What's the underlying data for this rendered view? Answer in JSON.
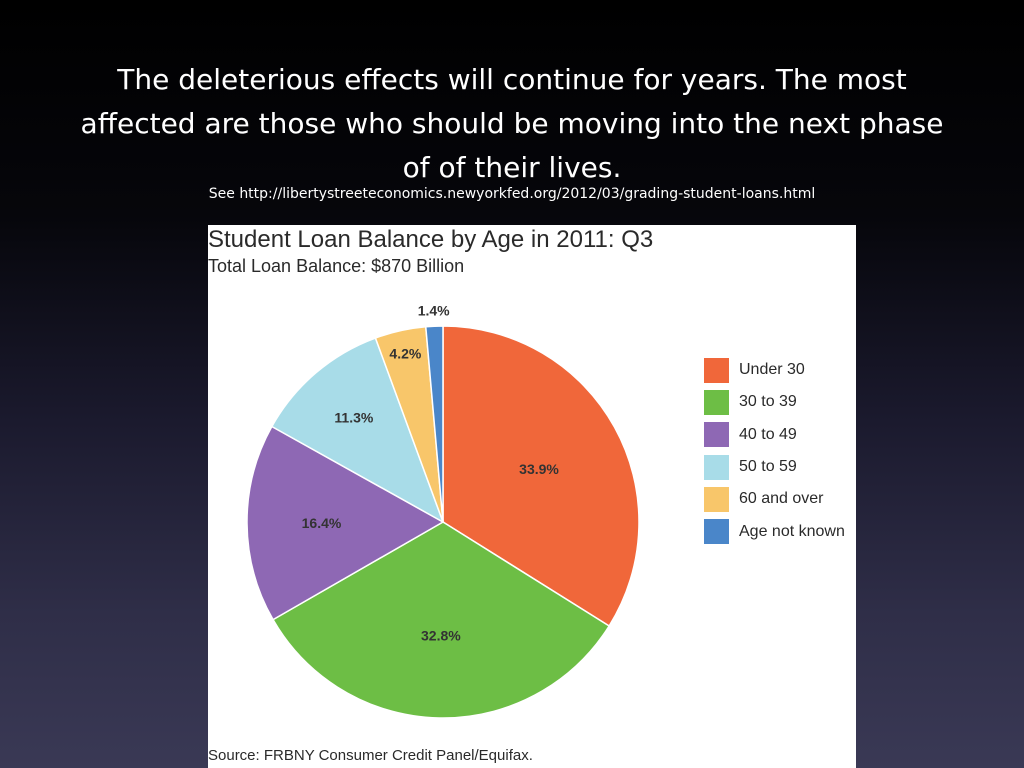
{
  "slide": {
    "title_lines": [
      "The deleterious effects will continue for years. The most",
      "affected are those who should be moving into the next phase",
      "of of their lives."
    ],
    "link": "See http://libertystreeteconomics.newyorkfed.org/2012/03/grading-student-loans.html"
  },
  "chart_data": {
    "type": "pie",
    "title": "Student Loan Balance by Age in 2011: Q3",
    "subtitle": "Total Loan Balance: $870 Billion",
    "source": "Source: FRBNY Consumer Credit Panel/Equifax.",
    "categories": [
      "Under 30",
      "30 to 39",
      "40 to 49",
      "50 to 59",
      "60 and over",
      "Age not known"
    ],
    "values": [
      33.9,
      32.8,
      16.4,
      11.3,
      4.2,
      1.4
    ],
    "data_labels": [
      "33.9%",
      "32.8%",
      "16.4%",
      "11.3%",
      "4.2%",
      "1.4%"
    ],
    "colors": [
      "#f0673a",
      "#6dbe45",
      "#8e68b4",
      "#a8dce8",
      "#f8c66a",
      "#4a86c9"
    ],
    "legend_position": "right"
  }
}
